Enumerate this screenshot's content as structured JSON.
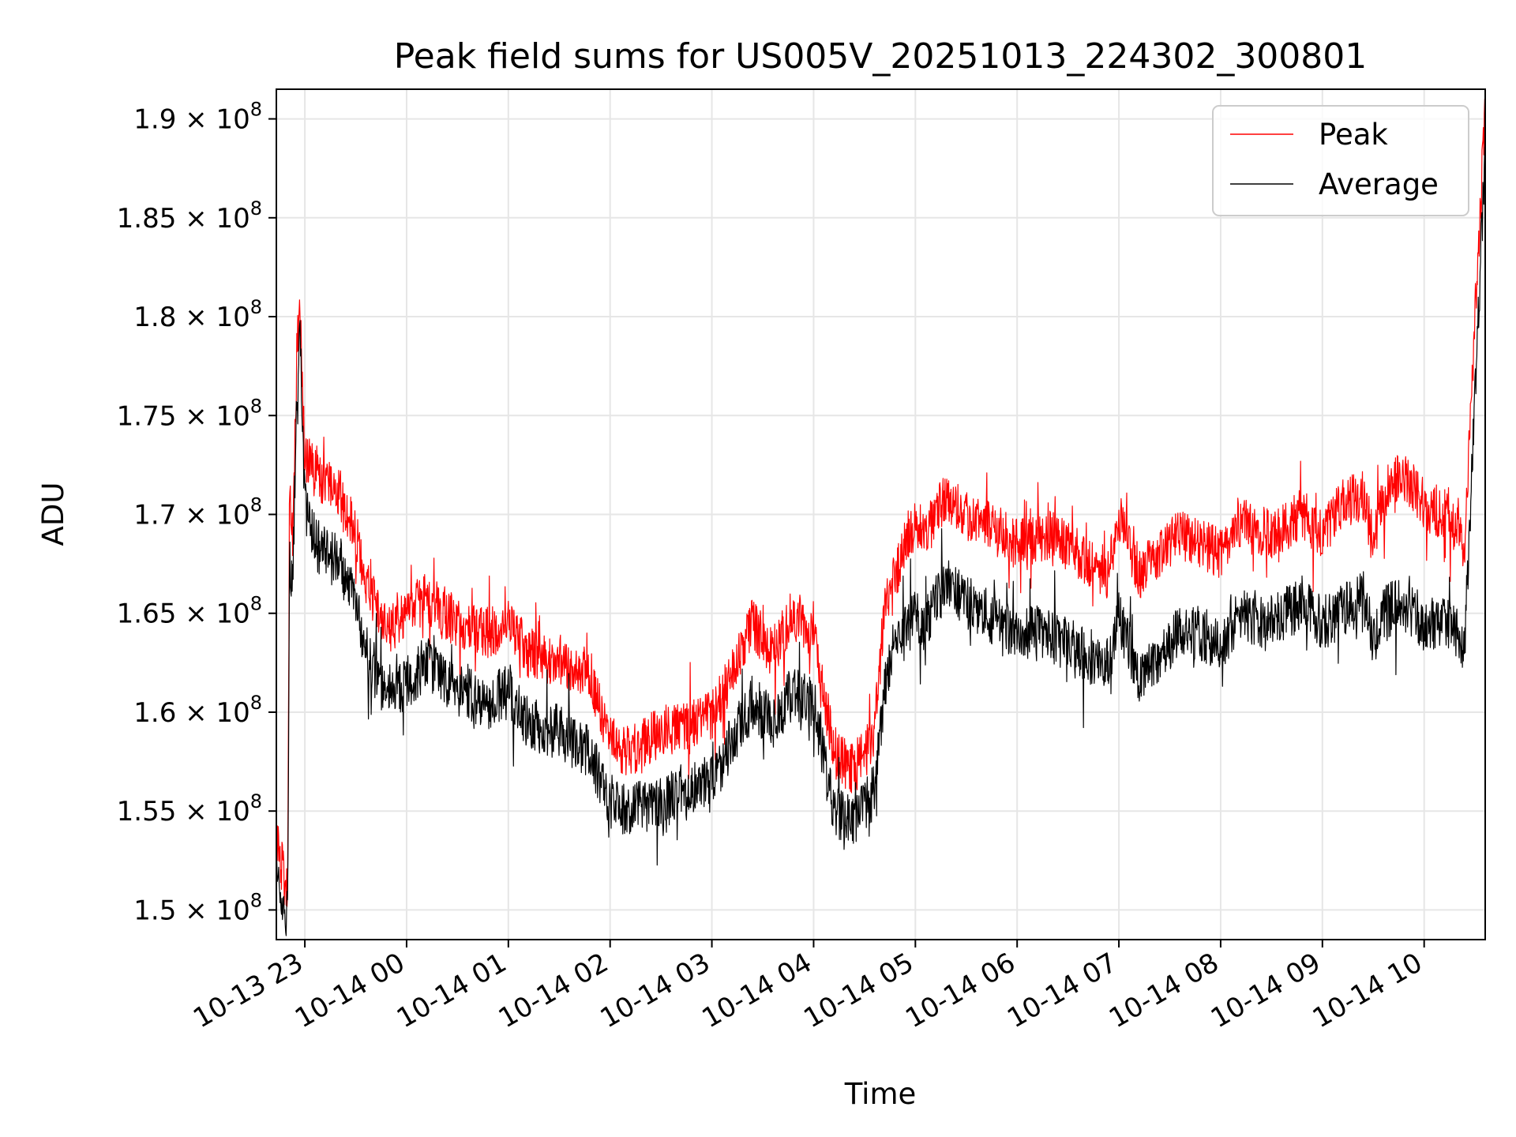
{
  "chart_data": {
    "type": "line",
    "title": "Peak field sums for US005V_20251013_224302_300801",
    "xlabel": "Time",
    "ylabel": "ADU",
    "x_range_hours": [
      -0.28,
      11.6
    ],
    "ylim": [
      148500000,
      191500000
    ],
    "grid": true,
    "legend_position": "top-right",
    "x_ticks": [
      {
        "hour": 0,
        "label": "10-13 23"
      },
      {
        "hour": 1,
        "label": "10-14 00"
      },
      {
        "hour": 2,
        "label": "10-14 01"
      },
      {
        "hour": 3,
        "label": "10-14 02"
      },
      {
        "hour": 4,
        "label": "10-14 03"
      },
      {
        "hour": 5,
        "label": "10-14 04"
      },
      {
        "hour": 6,
        "label": "10-14 05"
      },
      {
        "hour": 7,
        "label": "10-14 06"
      },
      {
        "hour": 8,
        "label": "10-14 07"
      },
      {
        "hour": 9,
        "label": "10-14 08"
      },
      {
        "hour": 10,
        "label": "10-14 09"
      },
      {
        "hour": 11,
        "label": "10-14 10"
      }
    ],
    "y_ticks": [
      {
        "value": 150000000,
        "mant": "1.5",
        "exp": "8"
      },
      {
        "value": 155000000,
        "mant": "1.55",
        "exp": "8"
      },
      {
        "value": 160000000,
        "mant": "1.6",
        "exp": "8"
      },
      {
        "value": 165000000,
        "mant": "1.65",
        "exp": "8"
      },
      {
        "value": 170000000,
        "mant": "1.7",
        "exp": "8"
      },
      {
        "value": 175000000,
        "mant": "1.75",
        "exp": "8"
      },
      {
        "value": 180000000,
        "mant": "1.8",
        "exp": "8"
      },
      {
        "value": 185000000,
        "mant": "1.85",
        "exp": "8"
      },
      {
        "value": 190000000,
        "mant": "1.9",
        "exp": "8"
      }
    ],
    "series": [
      {
        "name": "Peak",
        "color": "#ff0000",
        "x_hours": [
          -0.28,
          -0.2,
          -0.17,
          -0.15,
          -0.12,
          -0.08,
          -0.05,
          0.0,
          0.1,
          0.2,
          0.35,
          0.5,
          0.6,
          0.7,
          0.8,
          1.0,
          1.2,
          1.5,
          1.8,
          2.0,
          2.2,
          2.5,
          2.8,
          3.0,
          3.2,
          3.5,
          3.8,
          4.0,
          4.2,
          4.4,
          4.6,
          4.8,
          5.0,
          5.2,
          5.4,
          5.6,
          5.7,
          5.8,
          6.0,
          6.1,
          6.2,
          6.3,
          6.5,
          6.7,
          7.0,
          7.3,
          7.6,
          7.9,
          8.0,
          8.2,
          8.4,
          8.6,
          8.8,
          9.0,
          9.2,
          9.5,
          9.8,
          10.0,
          10.2,
          10.4,
          10.5,
          10.6,
          10.8,
          11.0,
          11.2,
          11.4,
          11.5,
          11.6
        ],
        "values": [
          153500000,
          151500000,
          150500000,
          171500000,
          168500000,
          178000000,
          180800000,
          173000000,
          172000000,
          171500000,
          171000000,
          169000000,
          166500000,
          165500000,
          164000000,
          165000000,
          165800000,
          164500000,
          164000000,
          164500000,
          163000000,
          162500000,
          162000000,
          158500000,
          158000000,
          159000000,
          159500000,
          159800000,
          162000000,
          164500000,
          163000000,
          165000000,
          164000000,
          158000000,
          157000000,
          159000000,
          165500000,
          167000000,
          169500000,
          169000000,
          170000000,
          171000000,
          170000000,
          169500000,
          168500000,
          169000000,
          168000000,
          167000000,
          170000000,
          167000000,
          168000000,
          169000000,
          168500000,
          168000000,
          169500000,
          169000000,
          170000000,
          169000000,
          170500000,
          171000000,
          168500000,
          171000000,
          172000000,
          170500000,
          170000000,
          168500000,
          180000000,
          190500000
        ]
      },
      {
        "name": "Average",
        "color": "#000000",
        "x_hours": [
          -0.28,
          -0.2,
          -0.17,
          -0.15,
          -0.12,
          -0.08,
          -0.05,
          0.0,
          0.1,
          0.2,
          0.35,
          0.5,
          0.6,
          0.7,
          0.8,
          1.0,
          1.2,
          1.5,
          1.8,
          2.0,
          2.2,
          2.5,
          2.8,
          3.0,
          3.2,
          3.5,
          3.8,
          4.0,
          4.2,
          4.4,
          4.6,
          4.8,
          5.0,
          5.2,
          5.4,
          5.6,
          5.7,
          5.8,
          6.0,
          6.1,
          6.2,
          6.3,
          6.5,
          6.7,
          7.0,
          7.3,
          7.6,
          7.9,
          8.0,
          8.2,
          8.4,
          8.6,
          8.8,
          9.0,
          9.2,
          9.5,
          9.8,
          10.0,
          10.2,
          10.4,
          10.5,
          10.6,
          10.8,
          11.0,
          11.2,
          11.4,
          11.5,
          11.6
        ],
        "values": [
          151500000,
          150000000,
          149500000,
          167500000,
          166500000,
          176000000,
          179500000,
          170500000,
          168500000,
          168000000,
          167500000,
          165500000,
          163000000,
          162000000,
          161000000,
          161500000,
          162500000,
          161000000,
          160500000,
          161000000,
          159500000,
          159000000,
          158000000,
          155500000,
          155000000,
          155500000,
          156000000,
          156500000,
          158500000,
          160500000,
          159500000,
          161000000,
          160500000,
          155000000,
          154500000,
          156000000,
          161500000,
          163000000,
          165000000,
          164500000,
          165500000,
          166500000,
          165500000,
          165000000,
          164000000,
          164000000,
          163000000,
          162500000,
          165000000,
          161500000,
          163000000,
          164000000,
          164000000,
          163500000,
          165000000,
          164500000,
          165500000,
          164500000,
          165000000,
          166000000,
          163500000,
          165000000,
          165500000,
          164500000,
          164500000,
          163500000,
          176000000,
          188500000
        ]
      }
    ]
  }
}
